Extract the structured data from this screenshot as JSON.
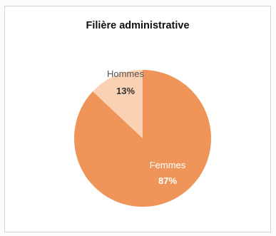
{
  "chart_data": {
    "type": "pie",
    "title": "Filière administrative",
    "slices": [
      {
        "label": "Hommes",
        "value": 13,
        "value_label": "13%",
        "color": "#fbd1b4"
      },
      {
        "label": "Femmes",
        "value": 87,
        "value_label": "87%",
        "color": "#f0955a"
      }
    ]
  }
}
